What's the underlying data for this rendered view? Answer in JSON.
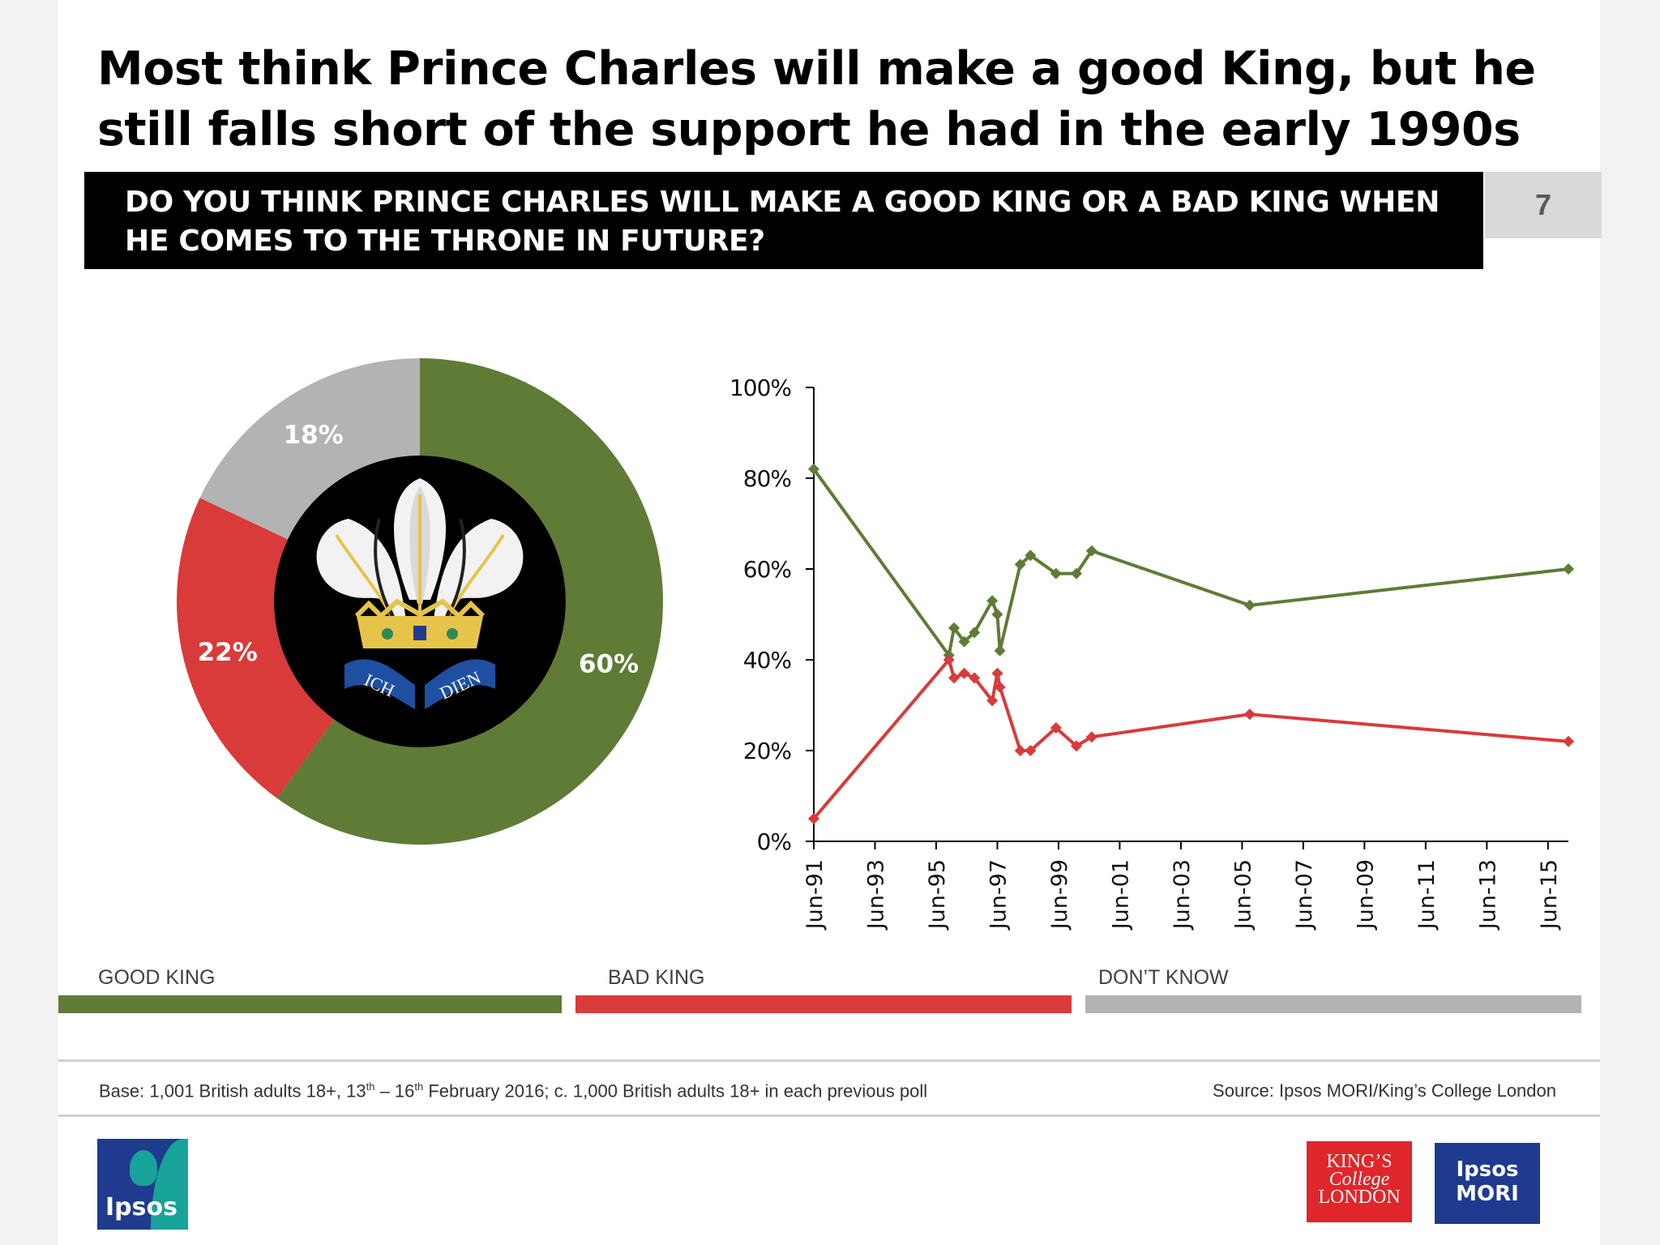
{
  "title": "Most think Prince Charles will make a good King, but he still falls short of the support he had in the early 1990s",
  "question": "DO YOU THINK PRINCE CHARLES WILL MAKE A GOOD KING OR A BAD KING WHEN HE COMES TO THE THRONE IN FUTURE?",
  "page_number": "7",
  "colors": {
    "good": "#5f7b36",
    "bad": "#d93a3a",
    "dont_know": "#b3b3b3"
  },
  "emblem_icon": "prince-of-wales-feathers-icon",
  "emblem_motto": [
    "ICH",
    "DIEN"
  ],
  "chart_data": [
    {
      "type": "pie",
      "slices": [
        {
          "label": "GOOD KING",
          "value": 60,
          "value_label": "60%",
          "color": "#5f7b36"
        },
        {
          "label": "BAD KING",
          "value": 22,
          "value_label": "22%",
          "color": "#d93a3a"
        },
        {
          "label": "DON'T KNOW",
          "value": 18,
          "value_label": "18%",
          "color": "#b3b3b3"
        }
      ]
    },
    {
      "type": "line",
      "x_ticks": [
        "Jun-91",
        "Jun-93",
        "Jun-95",
        "Jun-97",
        "Jun-99",
        "Jun-01",
        "Jun-03",
        "Jun-05",
        "Jun-07",
        "Jun-09",
        "Jun-11",
        "Jun-13",
        "Jun-15"
      ],
      "y_ticks": [
        "0%",
        "20%",
        "40%",
        "60%",
        "80%",
        "100%"
      ],
      "xlim": [
        "1991-06",
        "2016-02"
      ],
      "ylim": [
        0,
        100
      ],
      "series": [
        {
          "name": "GOOD KING",
          "color": "#5f7b36",
          "points": [
            {
              "x": "1991-06",
              "y": 82
            },
            {
              "x": "1995-11",
              "y": 41
            },
            {
              "x": "1996-01",
              "y": 47
            },
            {
              "x": "1996-05",
              "y": 44
            },
            {
              "x": "1996-09",
              "y": 46
            },
            {
              "x": "1997-04",
              "y": 53
            },
            {
              "x": "1997-06",
              "y": 50
            },
            {
              "x": "1997-07",
              "y": 42
            },
            {
              "x": "1998-03",
              "y": 61
            },
            {
              "x": "1998-07",
              "y": 63
            },
            {
              "x": "1999-05",
              "y": 59
            },
            {
              "x": "2000-01",
              "y": 59
            },
            {
              "x": "2000-07",
              "y": 64
            },
            {
              "x": "2005-09",
              "y": 52
            },
            {
              "x": "2016-02",
              "y": 60
            }
          ]
        },
        {
          "name": "BAD KING",
          "color": "#d93a3a",
          "points": [
            {
              "x": "1991-06",
              "y": 5
            },
            {
              "x": "1995-11",
              "y": 40
            },
            {
              "x": "1996-01",
              "y": 36
            },
            {
              "x": "1996-05",
              "y": 37
            },
            {
              "x": "1996-09",
              "y": 36
            },
            {
              "x": "1997-04",
              "y": 31
            },
            {
              "x": "1997-06",
              "y": 37
            },
            {
              "x": "1997-07",
              "y": 34
            },
            {
              "x": "1998-03",
              "y": 20
            },
            {
              "x": "1998-07",
              "y": 20
            },
            {
              "x": "1999-05",
              "y": 25
            },
            {
              "x": "2000-01",
              "y": 21
            },
            {
              "x": "2000-07",
              "y": 23
            },
            {
              "x": "2005-09",
              "y": 28
            },
            {
              "x": "2016-02",
              "y": 22
            }
          ]
        }
      ]
    }
  ],
  "legend": [
    {
      "label": "GOOD KING",
      "color": "#5f7b36"
    },
    {
      "label": "BAD KING",
      "color": "#d93a3a"
    },
    {
      "label": "DON’T KNOW",
      "color": "#b3b3b3"
    }
  ],
  "footer": {
    "base_prefix": "Base: 1,001 British adults 18+, 13",
    "base_sup1": "th",
    "base_mid": " – 16",
    "base_sup2": "th",
    "base_suffix": "  February 2016; c. 1,000 British adults 18+ in each previous poll",
    "source": "Source: Ipsos MORI/King’s College London"
  },
  "logos": {
    "ipsos": "Ipsos",
    "kings": [
      "KING’S",
      "College",
      "LONDON"
    ],
    "ipsos_mori": [
      "Ipsos",
      "MORI"
    ]
  }
}
